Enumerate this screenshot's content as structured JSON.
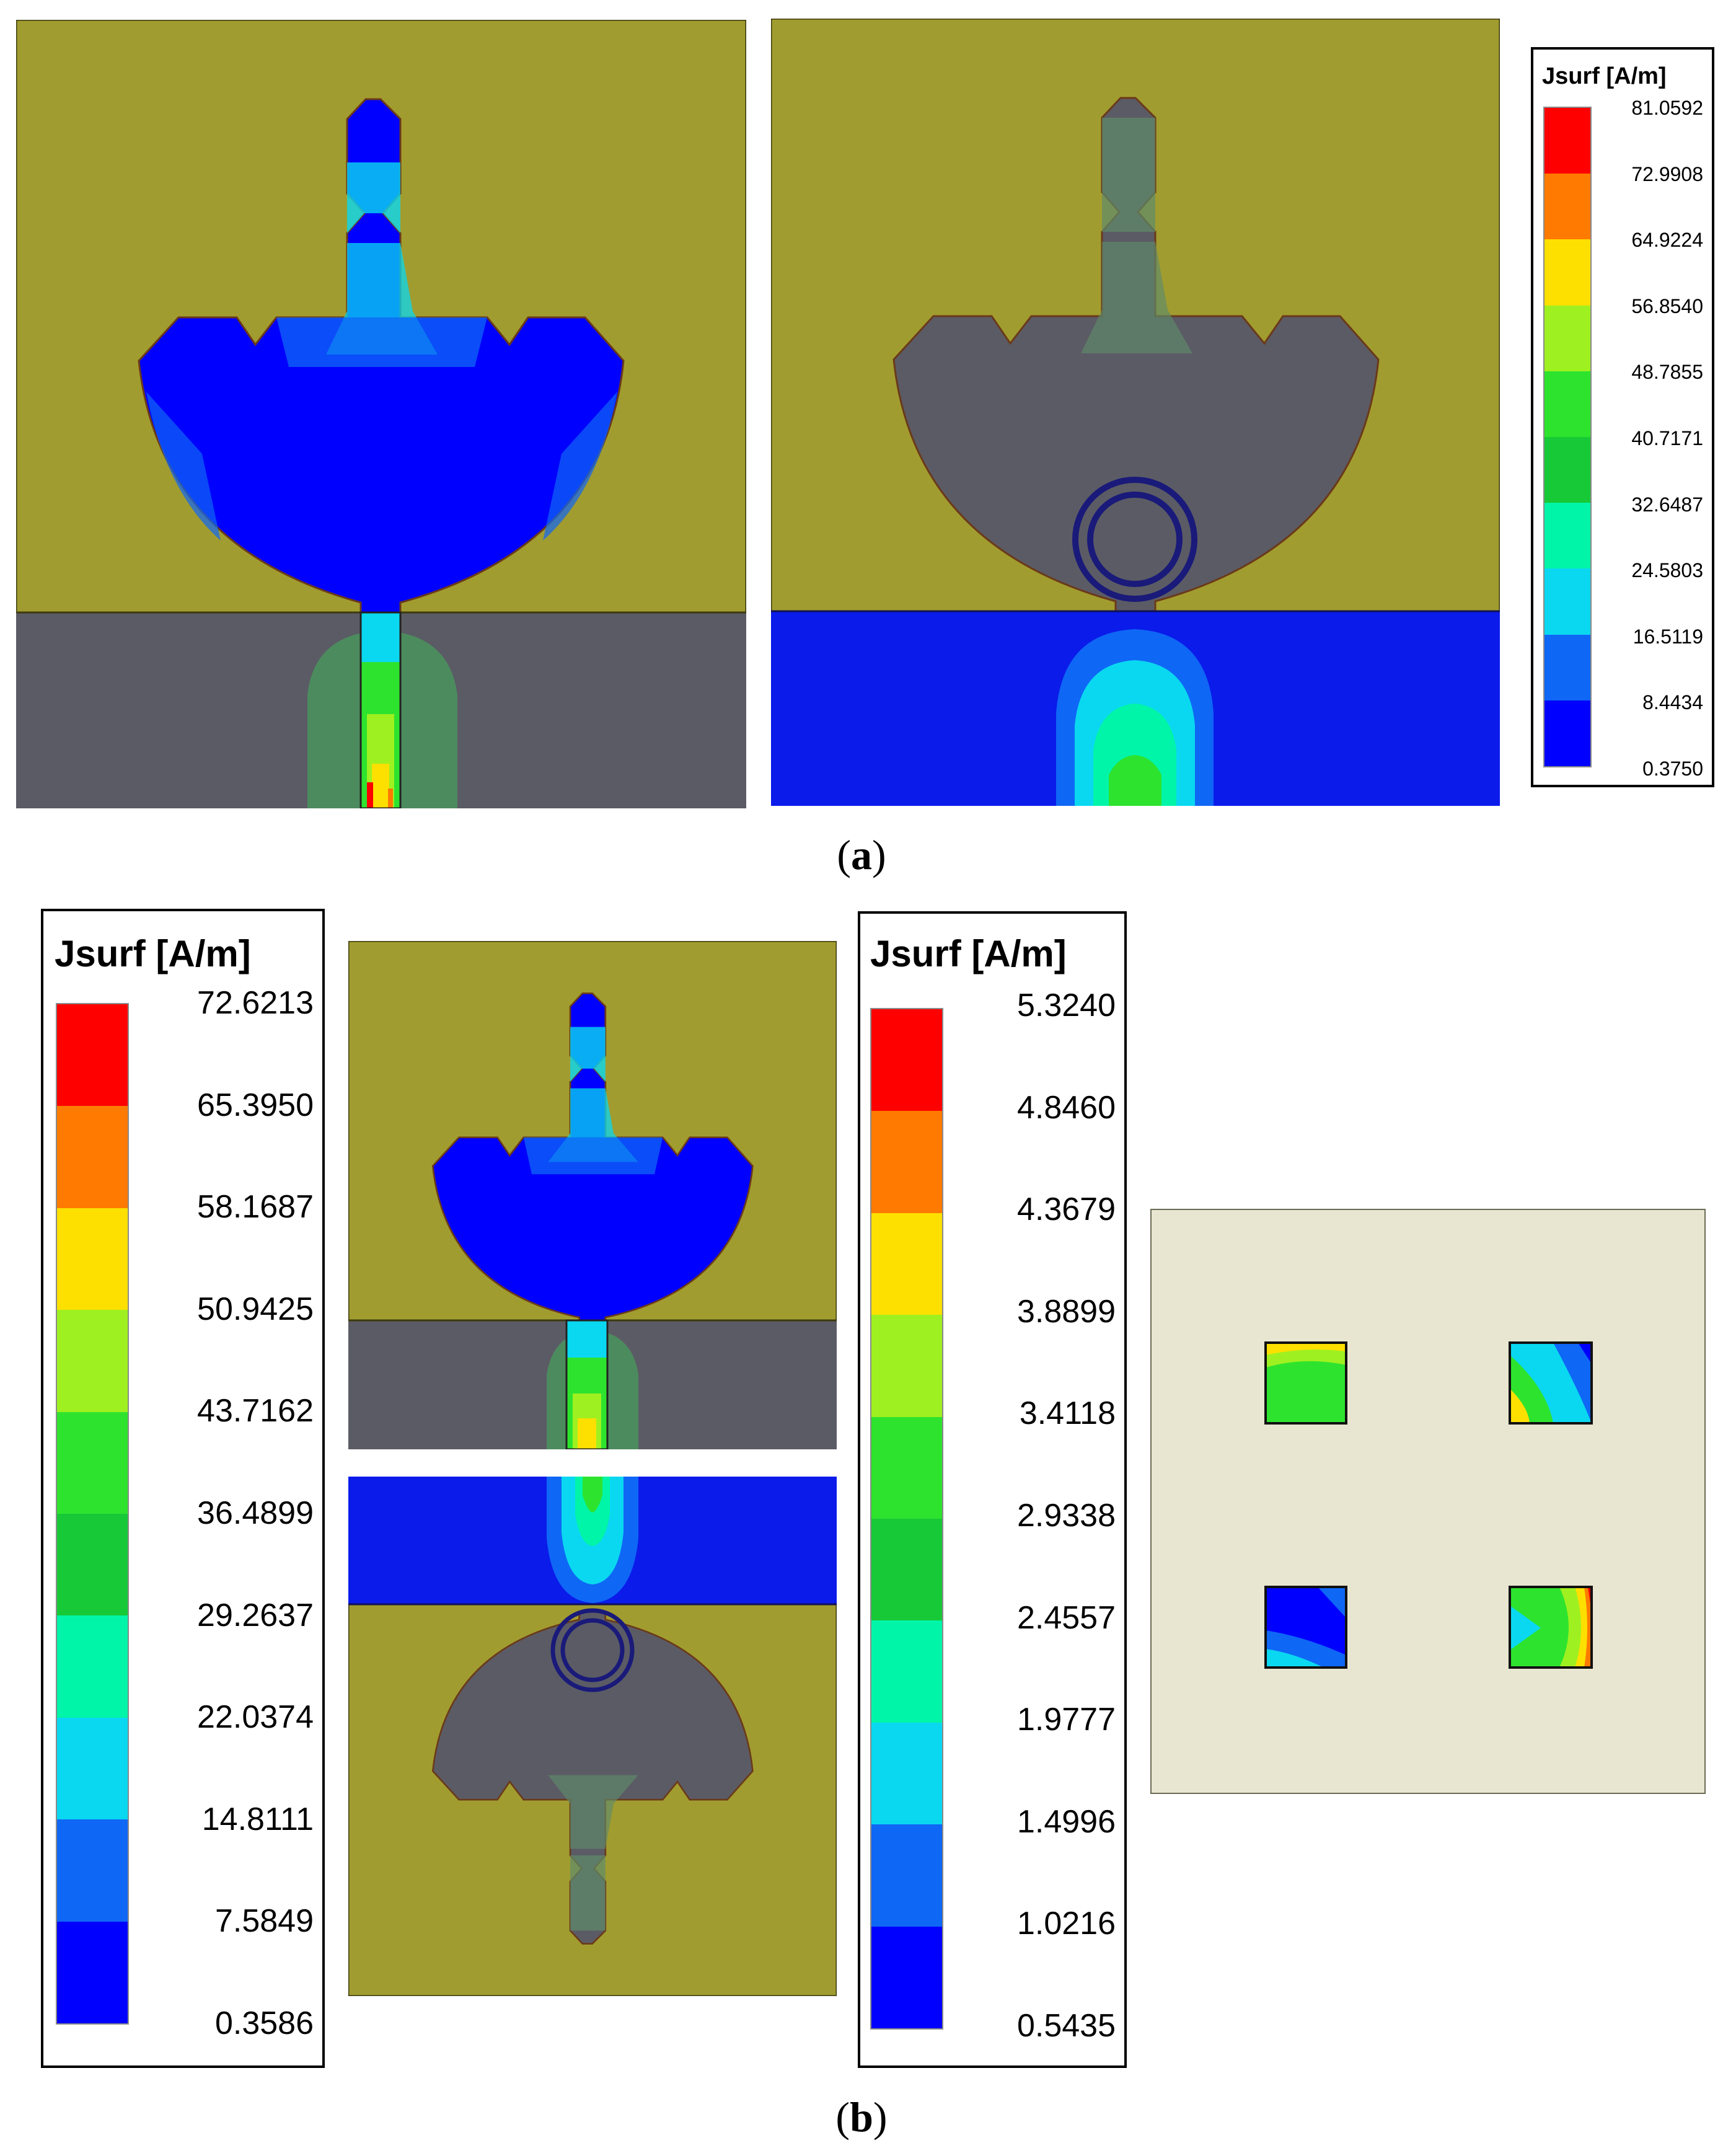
{
  "colors": {
    "substrate_olive": "#a19c2f",
    "ground_gray": "#5b5b65",
    "ground_blue": "#0a1bea",
    "pad_beige": "#e8e6d0",
    "level_colors": [
      "#0000ff",
      "#0f67f5",
      "#0ad8f0",
      "#00f5a8",
      "#17c937",
      "#2ee32e",
      "#9ff020",
      "#fde000",
      "#ff7a00",
      "#ff0000"
    ]
  },
  "figure_a": {
    "label": "a",
    "caption_open": "(",
    "caption_close": ")",
    "legend": {
      "title": "Jsurf [A/m]",
      "values": [
        "81.0592",
        "72.9908",
        "64.9224",
        "56.8540",
        "48.7855",
        "40.7171",
        "32.6487",
        "24.5803",
        "16.5119",
        "8.4434",
        "0.3750"
      ]
    },
    "panels": [
      {
        "name": "front-patch-view",
        "description": "patch current distribution, feed line on ground"
      },
      {
        "name": "back-ground-view",
        "description": "ground plane current with ring slot"
      }
    ]
  },
  "figure_b": {
    "label": "b",
    "caption_open": "(",
    "caption_close": ")",
    "legend_left": {
      "title": "Jsurf [A/m]",
      "values": [
        "72.6213",
        "65.3950",
        "58.1687",
        "50.9425",
        "43.7162",
        "36.4899",
        "29.2637",
        "22.0374",
        "14.8111",
        "7.5849",
        "0.3586"
      ]
    },
    "legend_right": {
      "title": "Jsurf [A/m]",
      "values": [
        "5.3240",
        "4.8460",
        "4.3679",
        "3.8899",
        "3.4118",
        "2.9338",
        "2.4557",
        "1.9777",
        "1.4996",
        "1.0216",
        "0.5435"
      ]
    }
  }
}
